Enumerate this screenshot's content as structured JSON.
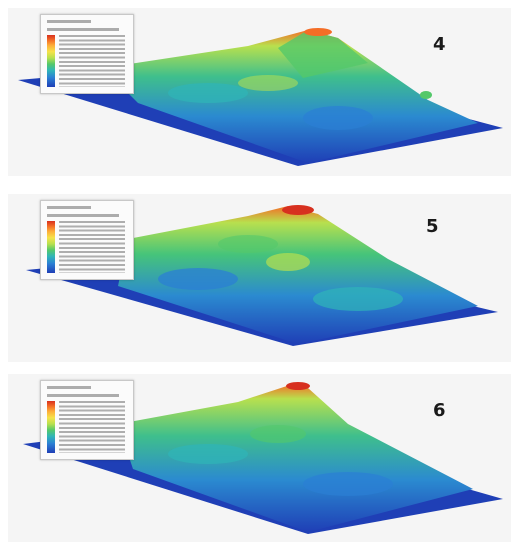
{
  "panels": [
    {
      "label": "4"
    },
    {
      "label": "5"
    },
    {
      "label": "6"
    }
  ],
  "colors": {
    "background": "#f5f5f5",
    "low": "#1f3fb6",
    "mid": "#54c86a",
    "high": "#d7301f"
  }
}
